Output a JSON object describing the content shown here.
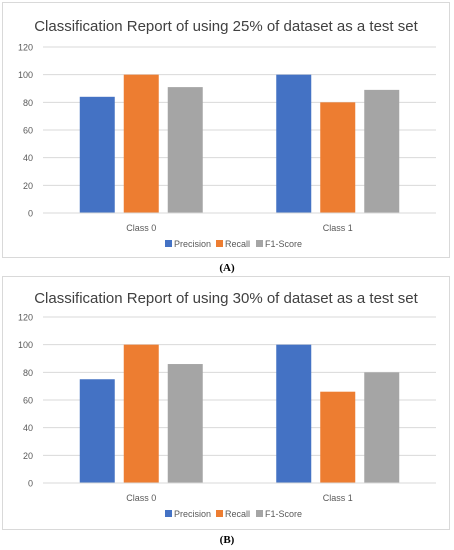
{
  "chart_data": [
    {
      "type": "bar",
      "title": "Classification Report of using 25% of dataset as a test set",
      "categories": [
        "Class 0",
        "Class 1"
      ],
      "series": [
        {
          "name": "Precision",
          "color": "#4472c4",
          "values": [
            84,
            100
          ]
        },
        {
          "name": "Recall",
          "color": "#ed7d31",
          "values": [
            100,
            80
          ]
        },
        {
          "name": "F1-Score",
          "color": "#a5a5a5",
          "values": [
            91,
            89
          ]
        }
      ],
      "yticks": [
        "0",
        "20",
        "40",
        "60",
        "80",
        "100",
        "120"
      ],
      "ylim": [
        0,
        120
      ],
      "grid": true,
      "legend": "bottom",
      "caption": "(A)"
    },
    {
      "type": "bar",
      "title": "Classification Report of using 30% of dataset as a test set",
      "categories": [
        "Class 0",
        "Class 1"
      ],
      "series": [
        {
          "name": "Precision",
          "color": "#4472c4",
          "values": [
            75,
            100
          ]
        },
        {
          "name": "Recall",
          "color": "#ed7d31",
          "values": [
            100,
            66
          ]
        },
        {
          "name": "F1-Score",
          "color": "#a5a5a5",
          "values": [
            86,
            80
          ]
        }
      ],
      "yticks": [
        "0",
        "20",
        "40",
        "60",
        "80",
        "100",
        "120"
      ],
      "ylim": [
        0,
        120
      ],
      "grid": true,
      "legend": "bottom",
      "caption": "(B)"
    }
  ]
}
